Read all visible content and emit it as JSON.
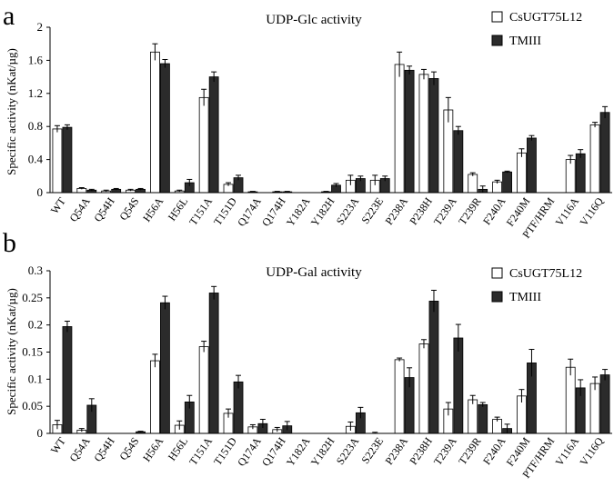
{
  "figure": {
    "panel_labels": [
      "a",
      "b"
    ]
  },
  "colors": {
    "white_bar": "#ffffff",
    "dark_bar": "#2b2b2b",
    "axis": "#000000"
  },
  "chart_data": [
    {
      "panel": "a",
      "type": "bar",
      "title": "UDP-Glc activity",
      "ylabel": "Specific activity (nKat/µg)",
      "xlabel": "",
      "ylim": [
        0,
        2
      ],
      "yticks": [
        0,
        0.4,
        0.8,
        1.2,
        1.6,
        2
      ],
      "ytick_labels": [
        "0",
        "0.4",
        "0.8",
        "1.2",
        "1.6",
        "2"
      ],
      "legend_position": "top-right",
      "categories": [
        "WT",
        "Q54A",
        "Q54H",
        "Q54S",
        "H56A",
        "H56L",
        "T151A",
        "T151D",
        "Q174A",
        "Q174H",
        "Y182A",
        "Y182H",
        "S223A",
        "S223E",
        "P238A",
        "P238H",
        "T239A",
        "T239R",
        "F240A",
        "F240M",
        "PTF/HRM",
        "V116A",
        "V116Q"
      ],
      "series": [
        {
          "name": "CsUGT75L12",
          "values": [
            0.77,
            0.05,
            0.02,
            0.03,
            1.7,
            0.02,
            1.15,
            0.1,
            0.01,
            0.01,
            0.0,
            0.01,
            0.15,
            0.15,
            1.55,
            1.43,
            1.0,
            0.22,
            0.13,
            0.48,
            0.0,
            0.4,
            0.82
          ],
          "errors": [
            0.04,
            0.01,
            0.01,
            0.01,
            0.1,
            0.01,
            0.1,
            0.02,
            0.005,
            0.005,
            0.0,
            0.005,
            0.06,
            0.06,
            0.15,
            0.06,
            0.15,
            0.02,
            0.02,
            0.05,
            0.0,
            0.05,
            0.03
          ]
        },
        {
          "name": "TMIII",
          "values": [
            0.79,
            0.03,
            0.04,
            0.04,
            1.56,
            0.12,
            1.4,
            0.18,
            0.0,
            0.01,
            0.0,
            0.09,
            0.17,
            0.17,
            1.48,
            1.38,
            0.75,
            0.04,
            0.25,
            0.66,
            0.0,
            0.47,
            0.97
          ],
          "errors": [
            0.03,
            0.01,
            0.01,
            0.01,
            0.05,
            0.04,
            0.06,
            0.03,
            0.0,
            0.005,
            0.0,
            0.02,
            0.03,
            0.03,
            0.05,
            0.08,
            0.05,
            0.04,
            0.01,
            0.03,
            0.0,
            0.05,
            0.07
          ]
        }
      ]
    },
    {
      "panel": "b",
      "type": "bar",
      "title": "UDP-Gal activity",
      "ylabel": "Specific activity (nKat/µg)",
      "xlabel": "",
      "ylim": [
        0,
        0.3
      ],
      "yticks": [
        0,
        0.05,
        0.1,
        0.15,
        0.2,
        0.25,
        0.3
      ],
      "ytick_labels": [
        "0",
        "0.05",
        "0.1",
        "0.15",
        "0.2",
        "0.25",
        "0.3"
      ],
      "legend_position": "top-right",
      "categories": [
        "WT",
        "Q54A",
        "Q54H",
        "Q54S",
        "H56A",
        "H56L",
        "T151A",
        "T151D",
        "Q174A",
        "Q174H",
        "Y182A",
        "Y182H",
        "S223A",
        "S223E",
        "P238A",
        "P238H",
        "T239A",
        "T239R",
        "F240A",
        "F240M",
        "PTF/HRM",
        "V116A",
        "V116Q"
      ],
      "series": [
        {
          "name": "CsUGT75L12",
          "values": [
            0.016,
            0.006,
            0.0,
            0.0,
            0.134,
            0.015,
            0.16,
            0.037,
            0.012,
            0.007,
            0.0,
            0.0,
            0.013,
            0.0,
            0.136,
            0.165,
            0.045,
            0.062,
            0.026,
            0.069,
            0.0,
            0.122,
            0.092
          ],
          "errors": [
            0.008,
            0.003,
            0.0,
            0.0,
            0.012,
            0.008,
            0.01,
            0.008,
            0.004,
            0.004,
            0.0,
            0.0,
            0.008,
            0.002,
            0.003,
            0.008,
            0.012,
            0.008,
            0.004,
            0.012,
            0.0,
            0.015,
            0.012
          ]
        },
        {
          "name": "TMIII",
          "values": [
            0.197,
            0.052,
            0.0,
            0.003,
            0.241,
            0.058,
            0.259,
            0.095,
            0.018,
            0.014,
            0.0,
            0.0,
            0.038,
            0.0,
            0.103,
            0.244,
            0.176,
            0.053,
            0.009,
            0.13,
            0.0,
            0.084,
            0.108
          ],
          "errors": [
            0.01,
            0.012,
            0.0,
            0.001,
            0.012,
            0.012,
            0.012,
            0.012,
            0.008,
            0.008,
            0.0,
            0.0,
            0.01,
            0.0,
            0.018,
            0.02,
            0.025,
            0.004,
            0.008,
            0.025,
            0.0,
            0.015,
            0.01
          ]
        }
      ]
    }
  ]
}
